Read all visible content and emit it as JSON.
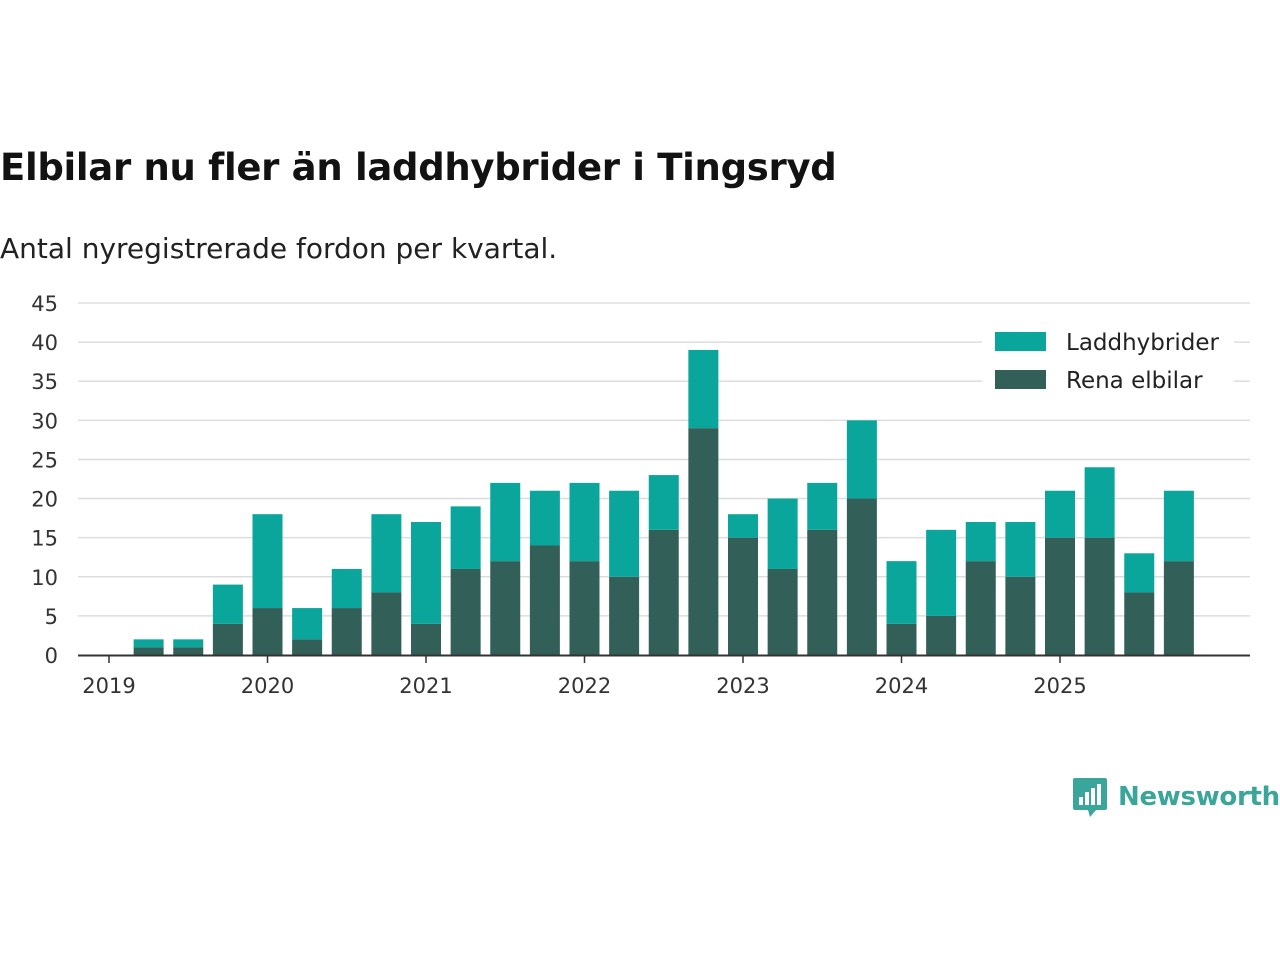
{
  "title": "Elbilar nu fler än laddhybrider i Tingsryd",
  "subtitle": "Antal nyregistrerade fordon per kvartal.",
  "brand": "Newsworthy",
  "colors": {
    "laddhybrider": "#0aa59b",
    "rena_elbilar": "#325f58",
    "brand": "#3aa59a",
    "grid": "#dddddd",
    "axis": "#333333"
  },
  "chart_data": {
    "type": "bar",
    "stacked": true,
    "title": "Elbilar nu fler än laddhybrider i Tingsryd",
    "subtitle": "Antal nyregistrerade fordon per kvartal.",
    "xlabel": "",
    "ylabel": "",
    "ylim": [
      0,
      45
    ],
    "yticks": [
      0,
      5,
      10,
      15,
      20,
      25,
      30,
      35,
      40,
      45
    ],
    "xticks": [
      "2019",
      "2020",
      "2021",
      "2022",
      "2023",
      "2024",
      "2025"
    ],
    "legend_position": "top-right",
    "grid": true,
    "categories": [
      "2019 Q1",
      "2019 Q2",
      "2019 Q3",
      "2019 Q4",
      "2020 Q1",
      "2020 Q2",
      "2020 Q3",
      "2020 Q4",
      "2021 Q1",
      "2021 Q2",
      "2021 Q3",
      "2021 Q4",
      "2022 Q1",
      "2022 Q2",
      "2022 Q3",
      "2022 Q4",
      "2023 Q1",
      "2023 Q2",
      "2023 Q3",
      "2023 Q4",
      "2024 Q1",
      "2024 Q2",
      "2024 Q3",
      "2024 Q4",
      "2025 Q1",
      "2025 Q2",
      "2025 Q3",
      "2025 Q4"
    ],
    "series": [
      {
        "name": "Rena elbilar",
        "values": [
          0,
          1,
          1,
          4,
          6,
          2,
          6,
          8,
          4,
          11,
          12,
          14,
          12,
          10,
          16,
          29,
          15,
          11,
          16,
          20,
          4,
          5,
          12,
          10,
          15,
          15,
          8,
          12
        ]
      },
      {
        "name": "Laddhybrider",
        "values": [
          0,
          1,
          1,
          5,
          12,
          4,
          5,
          10,
          13,
          8,
          10,
          7,
          10,
          11,
          7,
          10,
          3,
          9,
          6,
          10,
          8,
          11,
          5,
          7,
          6,
          9,
          5,
          9
        ]
      }
    ],
    "legend": [
      "Laddhybrider",
      "Rena elbilar"
    ]
  }
}
